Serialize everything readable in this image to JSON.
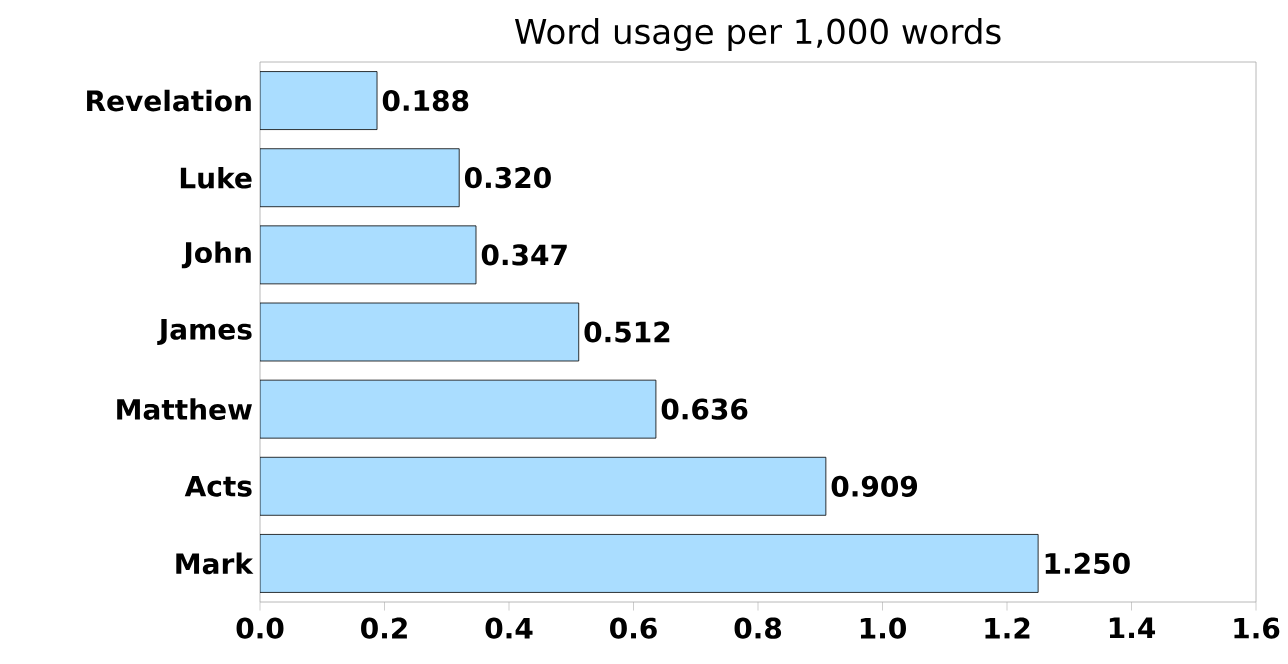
{
  "chart_data": {
    "type": "bar",
    "orientation": "horizontal",
    "title": "Word usage per 1,000 words",
    "categories": [
      "Revelation",
      "Luke",
      "John",
      "James",
      "Matthew",
      "Acts",
      "Mark"
    ],
    "values": [
      0.188,
      0.32,
      0.347,
      0.512,
      0.636,
      0.909,
      1.25
    ],
    "value_labels": [
      "0.188",
      "0.320",
      "0.347",
      "0.512",
      "0.636",
      "0.909",
      "1.250"
    ],
    "color": "#aaddff",
    "xlim": [
      0,
      1.6
    ],
    "xticks": [
      {
        "value": 0,
        "label": "0.0"
      },
      0.2,
      0.4,
      0.6,
      0.8,
      {
        "value": 1.0,
        "label": "1.0"
      },
      1.2,
      1.4,
      1.6
    ],
    "grid": false
  }
}
